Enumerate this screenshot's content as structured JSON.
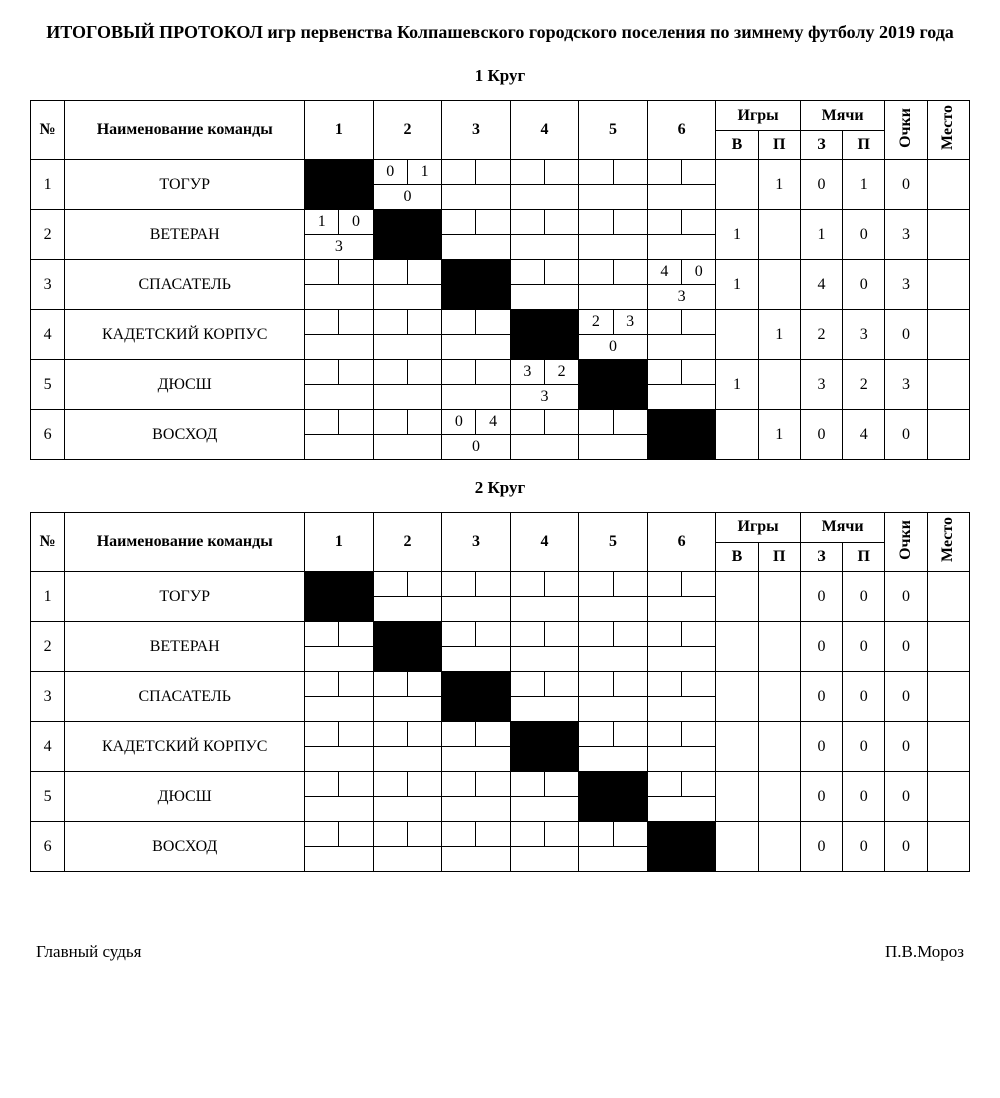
{
  "title": "ИТОГОВЫЙ ПРОТОКОЛ игр первенства Колпашевского городского поселения по зимнему футболу 2019 года",
  "headers": {
    "num": "№",
    "team": "Наименование команды",
    "games": "Игры",
    "goals": "Мячи",
    "points": "Очки",
    "place": "Место",
    "games_w": "В",
    "games_l": "П",
    "goals_for": "З",
    "goals_against": "П"
  },
  "rounds": [
    {
      "title": "1 Круг",
      "teams": [
        {
          "num": "1",
          "name": "ТОГУР",
          "scores": [
            null,
            {
              "a": "0",
              "b": "1",
              "pts": "0"
            },
            null,
            null,
            null,
            null
          ],
          "stats": {
            "w": "",
            "l": "1",
            "gf": "0",
            "ga": "1",
            "pts": "0",
            "place": ""
          }
        },
        {
          "num": "2",
          "name": "ВЕТЕРАН",
          "scores": [
            {
              "a": "1",
              "b": "0",
              "pts": "3"
            },
            null,
            null,
            null,
            null,
            null
          ],
          "stats": {
            "w": "1",
            "l": "",
            "gf": "1",
            "ga": "0",
            "pts": "3",
            "place": ""
          }
        },
        {
          "num": "3",
          "name": "СПАСАТЕЛЬ",
          "scores": [
            null,
            null,
            null,
            null,
            null,
            {
              "a": "4",
              "b": "0",
              "pts": "3"
            }
          ],
          "stats": {
            "w": "1",
            "l": "",
            "gf": "4",
            "ga": "0",
            "pts": "3",
            "place": ""
          }
        },
        {
          "num": "4",
          "name": "КАДЕТСКИЙ КОРПУС",
          "scores": [
            null,
            null,
            null,
            null,
            {
              "a": "2",
              "b": "3",
              "pts": "0"
            },
            null
          ],
          "stats": {
            "w": "",
            "l": "1",
            "gf": "2",
            "ga": "3",
            "pts": "0",
            "place": ""
          }
        },
        {
          "num": "5",
          "name": "ДЮСШ",
          "scores": [
            null,
            null,
            null,
            {
              "a": "3",
              "b": "2",
              "pts": "3"
            },
            null,
            null
          ],
          "stats": {
            "w": "1",
            "l": "",
            "gf": "3",
            "ga": "2",
            "pts": "3",
            "place": ""
          }
        },
        {
          "num": "6",
          "name": "ВОСХОД",
          "scores": [
            null,
            null,
            {
              "a": "0",
              "b": "4",
              "pts": "0"
            },
            null,
            null,
            null
          ],
          "stats": {
            "w": "",
            "l": "1",
            "gf": "0",
            "ga": "4",
            "pts": "0",
            "place": ""
          }
        }
      ]
    },
    {
      "title": "2 Круг",
      "teams": [
        {
          "num": "1",
          "name": "ТОГУР",
          "scores": [
            null,
            null,
            null,
            null,
            null,
            null
          ],
          "stats": {
            "w": "",
            "l": "",
            "gf": "0",
            "ga": "0",
            "pts": "0",
            "place": ""
          }
        },
        {
          "num": "2",
          "name": "ВЕТЕРАН",
          "scores": [
            null,
            null,
            null,
            null,
            null,
            null
          ],
          "stats": {
            "w": "",
            "l": "",
            "gf": "0",
            "ga": "0",
            "pts": "0",
            "place": ""
          }
        },
        {
          "num": "3",
          "name": "СПАСАТЕЛЬ",
          "scores": [
            null,
            null,
            null,
            null,
            null,
            null
          ],
          "stats": {
            "w": "",
            "l": "",
            "gf": "0",
            "ga": "0",
            "pts": "0",
            "place": ""
          }
        },
        {
          "num": "4",
          "name": "КАДЕТСКИЙ КОРПУС",
          "scores": [
            null,
            null,
            null,
            null,
            null,
            null
          ],
          "stats": {
            "w": "",
            "l": "",
            "gf": "0",
            "ga": "0",
            "pts": "0",
            "place": ""
          }
        },
        {
          "num": "5",
          "name": "ДЮСШ",
          "scores": [
            null,
            null,
            null,
            null,
            null,
            null
          ],
          "stats": {
            "w": "",
            "l": "",
            "gf": "0",
            "ga": "0",
            "pts": "0",
            "place": ""
          }
        },
        {
          "num": "6",
          "name": "ВОСХОД",
          "scores": [
            null,
            null,
            null,
            null,
            null,
            null
          ],
          "stats": {
            "w": "",
            "l": "",
            "gf": "0",
            "ga": "0",
            "pts": "0",
            "place": ""
          }
        }
      ]
    }
  ],
  "footer": {
    "role": "Главный судья",
    "name": "П.В.Мороз"
  }
}
